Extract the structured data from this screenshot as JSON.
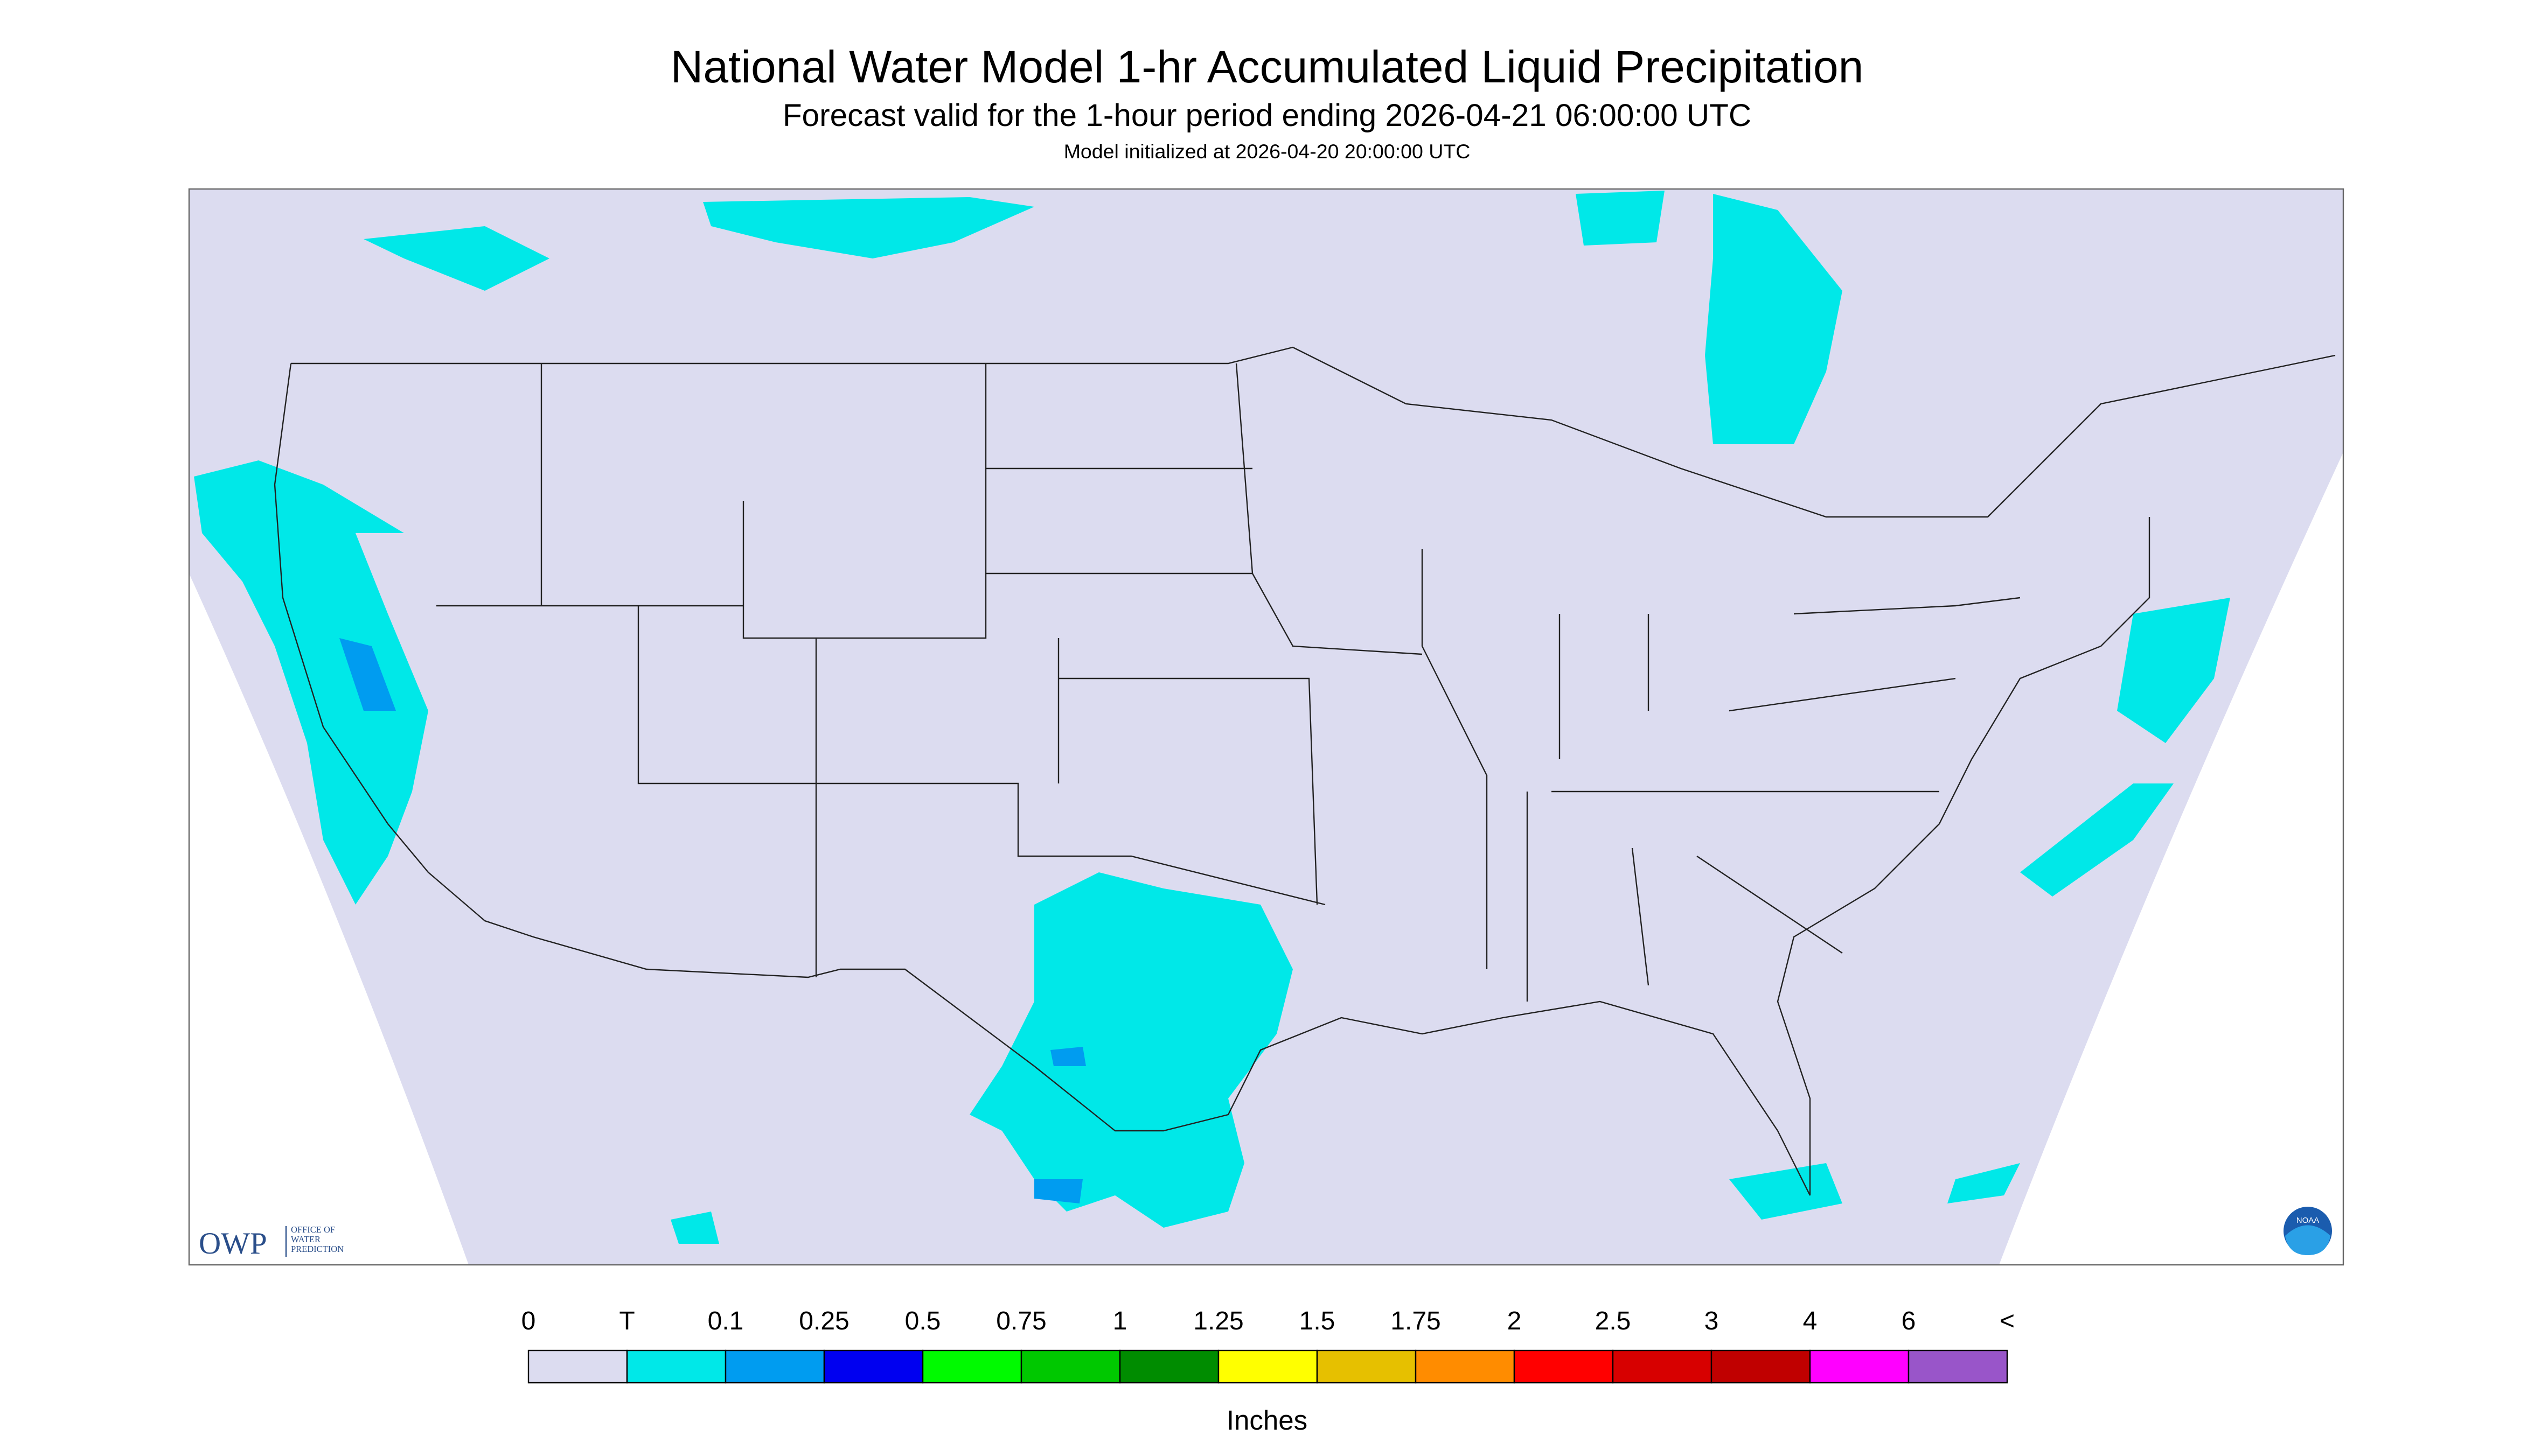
{
  "header": {
    "title": "National Water Model 1-hr Accumulated Liquid Precipitation",
    "subtitle": "Forecast valid for the 1-hour period ending 2026-04-21 06:00:00 UTC",
    "initialized": "Model initialized at 2026-04-20 20:00:00 UTC"
  },
  "legend": {
    "labels": [
      "0",
      "T",
      "0.1",
      "0.25",
      "0.5",
      "0.75",
      "1",
      "1.25",
      "1.5",
      "1.75",
      "2",
      "2.5",
      "3",
      "4",
      "6",
      "<"
    ],
    "colors": [
      "#dcdcf0",
      "#00e8e8",
      "#009cf0",
      "#0000f0",
      "#00fa00",
      "#00c800",
      "#008c00",
      "#ffff00",
      "#e6c000",
      "#ff8c00",
      "#ff0000",
      "#d70000",
      "#c00000",
      "#ff00ff",
      "#9955c9"
    ],
    "units": "Inches"
  },
  "logo": {
    "name": "OWP",
    "lines": [
      "OFFICE OF",
      "WATER",
      "PREDICTION"
    ]
  },
  "badge": "NOAA"
}
